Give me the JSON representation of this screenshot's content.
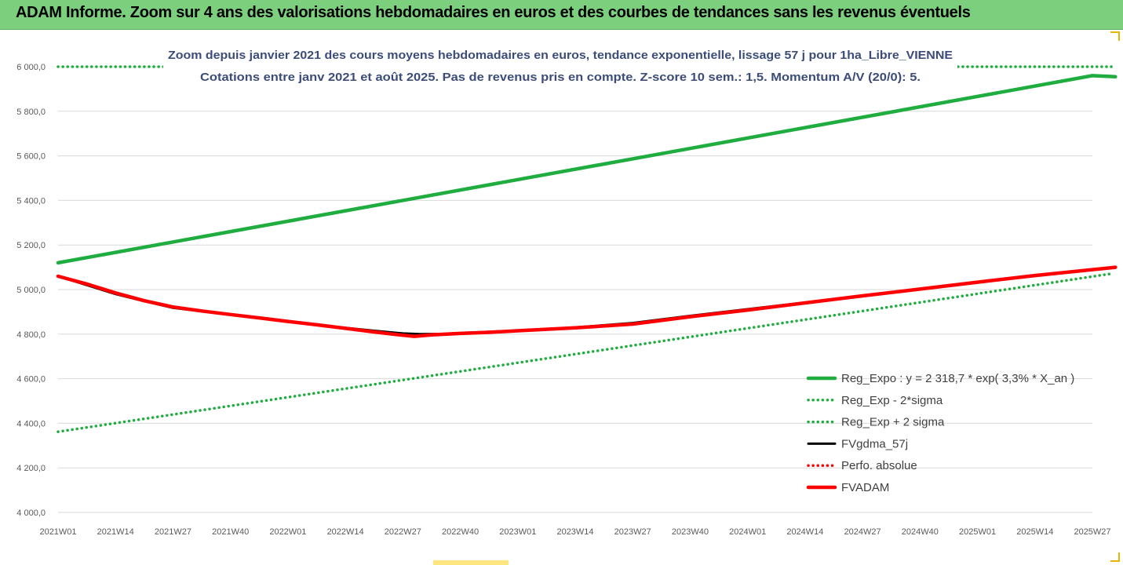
{
  "banner": {
    "title": "ADAM Informe. Zoom sur 4 ans des valorisations hebdomadaires en euros et des courbes de tendances sans les revenus éventuels"
  },
  "colors": {
    "banner_bg": "#7ccf7c",
    "trend_green": "#1fad3f",
    "fvadam_red": "#ff0000",
    "fvgdma_black": "#000000",
    "perfo_red": "#ff0000"
  },
  "chart_data": {
    "type": "line",
    "title_line1": "Zoom depuis janvier 2021 des cours moyens hebdomadaires en euros, tendance exponentielle, lissage 57 j pour 1ha_Libre_VIENNE",
    "title_line2": "Cotations entre janv 2021 et août 2025.  Pas de revenus pris en compte. Z-score 10 sem.: 1,5. Momentum A/V (20/0): 5.",
    "ylim": [
      4000,
      6000
    ],
    "y_ticks": [
      "4 000,0",
      "4 200,0",
      "4 400,0",
      "4 600,0",
      "4 800,0",
      "5 000,0",
      "5 200,0",
      "5 400,0",
      "5 600,0",
      "5 800,0",
      "6 000,0"
    ],
    "x_ticks": [
      "2021W01",
      "2021W14",
      "2021W27",
      "2021W40",
      "2022W01",
      "2022W14",
      "2022W27",
      "2022W40",
      "2023W01",
      "2023W14",
      "2023W27",
      "2023W40",
      "2024W01",
      "2024W14",
      "2024W27",
      "2024W40",
      "2025W01",
      "2025W14",
      "2025W27"
    ],
    "grid": "horizontal",
    "legend_position": "bottom-right",
    "series": [
      {
        "name": "Reg_Expo : y = 2 318,7 * exp( 3,3% *  X_an )",
        "style": "solid-thick",
        "color": "#1fad3f",
        "points": [
          [
            0,
            5120
          ],
          [
            18,
            5960
          ],
          [
            18.4,
            5955
          ]
        ]
      },
      {
        "name": "Reg_Exp - 2*sigma",
        "style": "dotted",
        "color": "#1fad3f",
        "points": [
          [
            0,
            4362
          ],
          [
            18.3,
            5070
          ]
        ]
      },
      {
        "name": "Reg_Exp + 2 sigma",
        "style": "dotted",
        "color": "#1fad3f",
        "points": [
          [
            0,
            6000
          ],
          [
            18.4,
            6000
          ]
        ]
      },
      {
        "name": "FVgdma_57j",
        "style": "solid",
        "color": "#000000",
        "points": [
          [
            0,
            5060
          ],
          [
            0.5,
            5020
          ],
          [
            1,
            4980
          ],
          [
            1.5,
            4948
          ],
          [
            2,
            4918
          ],
          [
            2.5,
            4902
          ],
          [
            3,
            4888
          ],
          [
            3.5,
            4874
          ],
          [
            4,
            4858
          ],
          [
            4.5,
            4842
          ],
          [
            5,
            4828
          ],
          [
            5.5,
            4815
          ],
          [
            6,
            4803
          ],
          [
            6.3,
            4800
          ],
          [
            6.7,
            4801
          ],
          [
            7,
            4805
          ],
          [
            8,
            4816
          ],
          [
            9,
            4830
          ],
          [
            10,
            4850
          ],
          [
            11,
            4882
          ],
          [
            12,
            4912
          ],
          [
            13,
            4942
          ],
          [
            14,
            4972
          ],
          [
            15,
            5002
          ],
          [
            16,
            5032
          ],
          [
            17,
            5062
          ],
          [
            18.4,
            5100
          ]
        ]
      },
      {
        "name": "Perfo. absolue",
        "style": "dotted",
        "color": "#ff0000",
        "points": []
      },
      {
        "name": "FVADAM",
        "style": "solid-thick",
        "color": "#ff0000",
        "points": [
          [
            0,
            5060
          ],
          [
            0.5,
            5025
          ],
          [
            1,
            4985
          ],
          [
            1.5,
            4950
          ],
          [
            2,
            4922
          ],
          [
            2.5,
            4904
          ],
          [
            3,
            4888
          ],
          [
            3.5,
            4873
          ],
          [
            4,
            4857
          ],
          [
            4.5,
            4842
          ],
          [
            5,
            4826
          ],
          [
            5.5,
            4810
          ],
          [
            6,
            4795
          ],
          [
            6.2,
            4790
          ],
          [
            6.5,
            4797
          ],
          [
            7,
            4803
          ],
          [
            7.5,
            4808
          ],
          [
            8,
            4815
          ],
          [
            9,
            4828
          ],
          [
            10,
            4845
          ],
          [
            11,
            4878
          ],
          [
            12,
            4908
          ],
          [
            13,
            4940
          ],
          [
            14,
            4972
          ],
          [
            15,
            5002
          ],
          [
            16,
            5033
          ],
          [
            17,
            5063
          ],
          [
            18.4,
            5100
          ]
        ]
      }
    ]
  }
}
